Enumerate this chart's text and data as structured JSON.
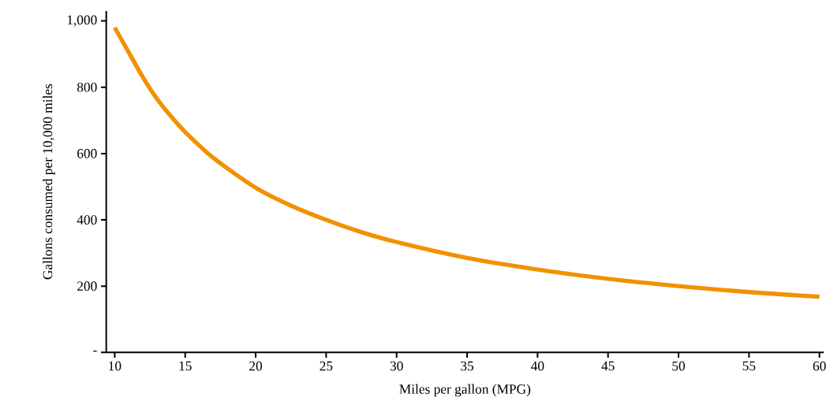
{
  "chart_data": {
    "type": "line",
    "xlabel": "Miles per gallon (MPG)",
    "ylabel": "Gallons consumed per 10,000 miles",
    "x": [
      10,
      11,
      12,
      13,
      14,
      15,
      17,
      20,
      22.5,
      25,
      27.5,
      30,
      35,
      40,
      45,
      50,
      55,
      60
    ],
    "series": [
      {
        "color": "#f29100",
        "values": [
          980,
          905,
          830,
          765,
          712,
          665,
          587,
          497,
          443,
          400,
          363,
          333,
          285,
          250,
          222,
          200,
          182,
          168
        ]
      }
    ],
    "xlim": [
      9.4,
      60.3
    ],
    "ylim": [
      0,
      1030
    ],
    "xticks": [
      10,
      15,
      20,
      25,
      30,
      35,
      40,
      45,
      50,
      55,
      60
    ],
    "yticks": [
      {
        "value": 0,
        "label": "-"
      },
      200,
      400,
      600,
      800,
      {
        "value": 1000,
        "label": "1,000"
      }
    ],
    "grid": false,
    "marker": "none",
    "line_style": "solid"
  }
}
